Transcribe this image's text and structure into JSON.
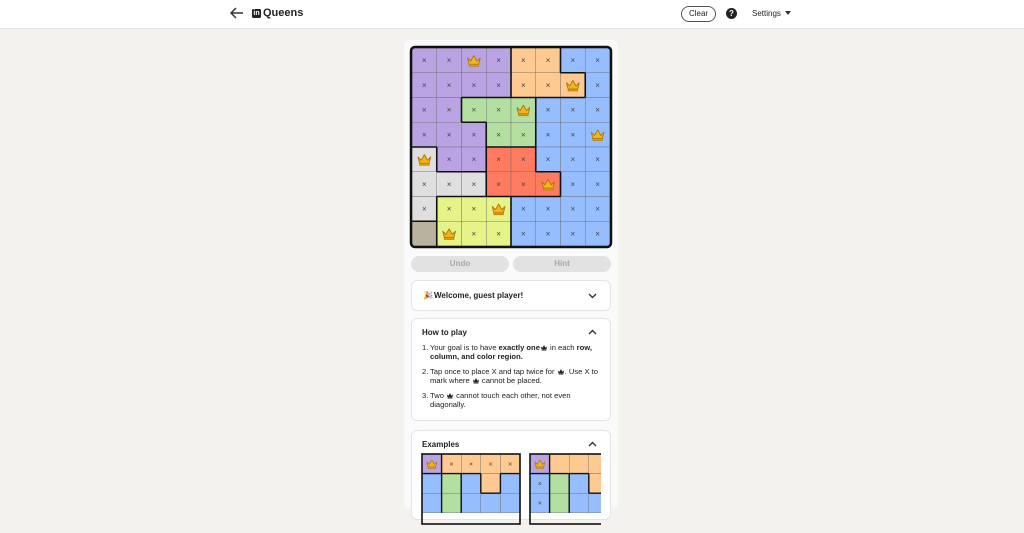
{
  "header": {
    "title": "Queens",
    "clear": "Clear",
    "help": "?",
    "settings": "Settings"
  },
  "board": {
    "rows": [
      [
        {
          "color": "#b9a3e3",
          "text": "×"
        },
        {
          "color": "#b9a3e3",
          "text": "×"
        },
        {
          "color": "#b9a3e3",
          "queen": true
        },
        {
          "color": "#b9a3e3",
          "text": "×"
        },
        {
          "color": "#ffc992",
          "text": "×"
        },
        {
          "color": "#ffc992",
          "text": "×"
        },
        {
          "color": "#96beff",
          "text": "×"
        },
        {
          "color": "#96beff",
          "text": "×"
        }
      ],
      [
        {
          "color": "#b9a3e3",
          "text": "×"
        },
        {
          "color": "#b9a3e3",
          "text": "×"
        },
        {
          "color": "#b9a3e3",
          "text": "×"
        },
        {
          "color": "#b9a3e3",
          "text": "×"
        },
        {
          "color": "#ffc992",
          "text": "×"
        },
        {
          "color": "#ffc992",
          "text": "×"
        },
        {
          "color": "#ffc992",
          "queen": true
        },
        {
          "color": "#96beff",
          "text": "×"
        }
      ],
      [
        {
          "color": "#b9a3e3",
          "text": "×"
        },
        {
          "color": "#b9a3e3",
          "text": "×"
        },
        {
          "color": "#b3dfa0",
          "text": "×"
        },
        {
          "color": "#b3dfa0",
          "text": "×"
        },
        {
          "color": "#b3dfa0",
          "queen": true
        },
        {
          "color": "#96beff",
          "text": "×"
        },
        {
          "color": "#96beff",
          "text": "×"
        },
        {
          "color": "#96beff",
          "text": "×"
        }
      ],
      [
        {
          "color": "#b9a3e3",
          "text": "×"
        },
        {
          "color": "#b9a3e3",
          "text": "×"
        },
        {
          "color": "#b9a3e3",
          "text": "×"
        },
        {
          "color": "#b3dfa0",
          "text": "×"
        },
        {
          "color": "#b3dfa0",
          "text": "×"
        },
        {
          "color": "#96beff",
          "text": "×"
        },
        {
          "color": "#96beff",
          "text": "×"
        },
        {
          "color": "#96beff",
          "queen": true
        }
      ],
      [
        {
          "color": "#dfdfdf",
          "queen": true
        },
        {
          "color": "#b9a3e3",
          "text": "×"
        },
        {
          "color": "#b9a3e3",
          "text": "×"
        },
        {
          "color": "#ff7b60",
          "text": "×"
        },
        {
          "color": "#ff7b60",
          "text": "×"
        },
        {
          "color": "#96beff",
          "text": "×"
        },
        {
          "color": "#96beff",
          "text": "×"
        },
        {
          "color": "#96beff",
          "text": "×"
        }
      ],
      [
        {
          "color": "#dfdfdf",
          "text": "×"
        },
        {
          "color": "#dfdfdf",
          "text": "×"
        },
        {
          "color": "#dfdfdf",
          "text": "×"
        },
        {
          "color": "#ff7b60",
          "text": "×"
        },
        {
          "color": "#ff7b60",
          "text": "×"
        },
        {
          "color": "#ff7b60",
          "queen": true
        },
        {
          "color": "#96beff",
          "text": "×"
        },
        {
          "color": "#96beff",
          "text": "×"
        }
      ],
      [
        {
          "color": "#dfdfdf",
          "text": "×"
        },
        {
          "color": "#e6f388",
          "text": "×"
        },
        {
          "color": "#e6f388",
          "text": "×"
        },
        {
          "color": "#e6f388",
          "queen": true
        },
        {
          "color": "#96beff",
          "text": "×"
        },
        {
          "color": "#96beff",
          "text": "×"
        },
        {
          "color": "#96beff",
          "text": "×"
        },
        {
          "color": "#96beff",
          "text": "×"
        }
      ],
      [
        {
          "color": "#b9b29e"
        },
        {
          "color": "#e6f388",
          "queen": true
        },
        {
          "color": "#e6f388",
          "text": "×"
        },
        {
          "color": "#e6f388",
          "text": "×"
        },
        {
          "color": "#96beff",
          "text": "×"
        },
        {
          "color": "#96beff",
          "text": "×"
        },
        {
          "color": "#96beff",
          "text": "×"
        },
        {
          "color": "#96beff",
          "text": "×"
        }
      ]
    ]
  },
  "controls": {
    "undo": "Undo",
    "hint": "Hint"
  },
  "welcome": {
    "title": "Welcome, guest player!"
  },
  "how_to_play": {
    "title": "How to play",
    "items": [
      {
        "number": "1.",
        "parts": [
          {
            "text": "Your goal is to have "
          },
          {
            "text": "exactly one",
            "bold": true
          },
          {
            "icon": "crown"
          },
          {
            "text": " in each "
          },
          {
            "text": "row, column, and color region.",
            "bold": true
          }
        ]
      },
      {
        "number": "2.",
        "parts": [
          {
            "text": "Tap once to place X and tap twice for "
          },
          {
            "icon": "crown"
          },
          {
            "text": ". Use X to mark where "
          },
          {
            "icon": "crown"
          },
          {
            "text": " cannot be placed."
          }
        ]
      },
      {
        "number": "3.",
        "parts": [
          {
            "text": "Two "
          },
          {
            "icon": "crown"
          },
          {
            "text": " cannot touch each other, not even diagonally."
          }
        ]
      }
    ]
  },
  "examples": {
    "title": "Examples",
    "grids": [
      {
        "rows": [
          [
            {
              "color": "#b9a3e3",
              "queen": true
            },
            {
              "color": "#ffc992",
              "text": "×"
            },
            {
              "color": "#ffc992",
              "text": "×"
            },
            {
              "color": "#ffc992",
              "text": "×"
            },
            {
              "color": "#ffc992",
              "text": "×"
            }
          ],
          [
            {
              "color": "#96beff"
            },
            {
              "color": "#b3dfa0"
            },
            {
              "color": "#96beff"
            },
            {
              "color": "#ffc992"
            },
            {
              "color": "#96beff"
            }
          ],
          [
            {
              "color": "#96beff"
            },
            {
              "color": "#b3dfa0"
            },
            {
              "color": "#96beff"
            },
            {
              "color": "#96beff"
            },
            {
              "color": "#96beff"
            }
          ]
        ]
      },
      {
        "rows": [
          [
            {
              "color": "#b9a3e3",
              "queen": true
            },
            {
              "color": "#ffc992"
            },
            {
              "color": "#ffc992"
            },
            {
              "color": "#ffc992"
            }
          ],
          [
            {
              "color": "#96beff",
              "text": "×"
            },
            {
              "color": "#b3dfa0"
            },
            {
              "color": "#96beff"
            },
            {
              "color": "#ffc992"
            }
          ],
          [
            {
              "color": "#96beff",
              "text": "×"
            },
            {
              "color": "#b3dfa0"
            },
            {
              "color": "#96beff"
            },
            {
              "color": "#96beff"
            }
          ]
        ]
      }
    ]
  }
}
